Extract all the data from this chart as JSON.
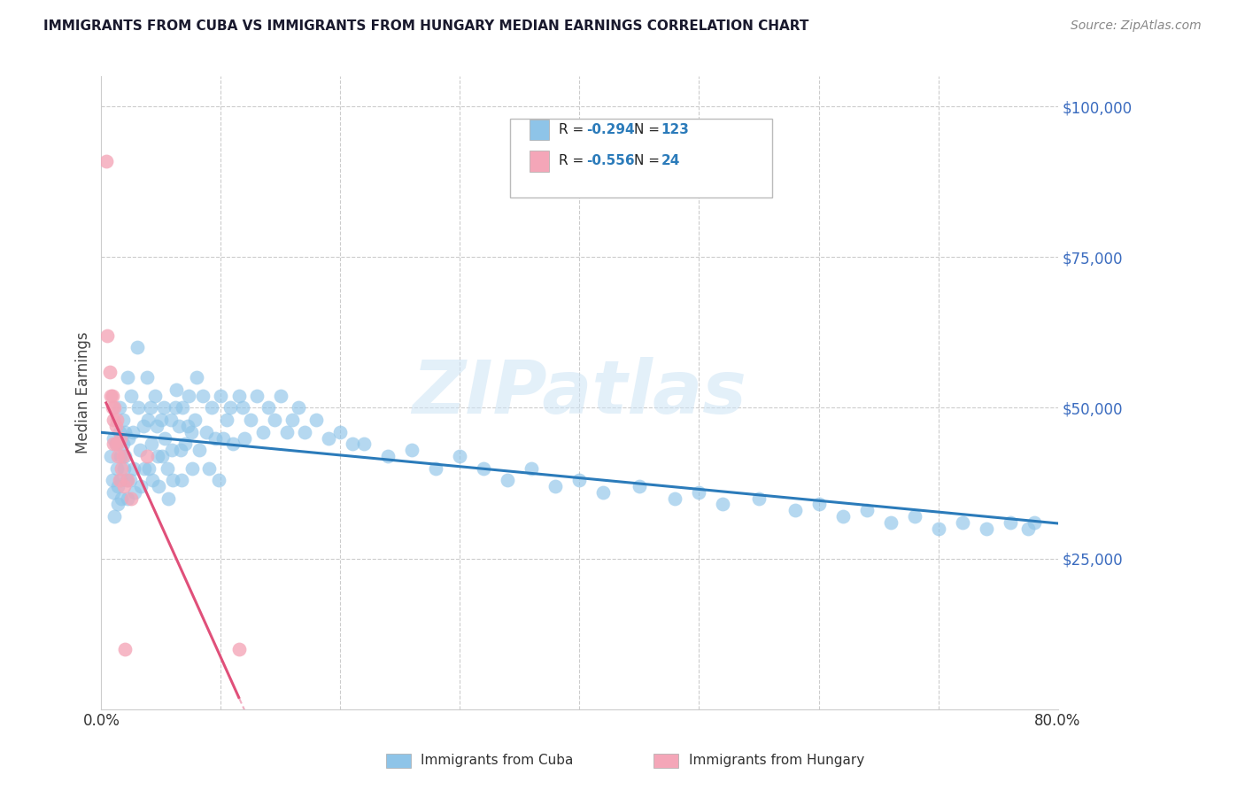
{
  "title": "IMMIGRANTS FROM CUBA VS IMMIGRANTS FROM HUNGARY MEDIAN EARNINGS CORRELATION CHART",
  "source": "Source: ZipAtlas.com",
  "ylabel": "Median Earnings",
  "xlim": [
    0.0,
    0.8
  ],
  "ylim": [
    0,
    105000
  ],
  "yticks": [
    0,
    25000,
    50000,
    75000,
    100000
  ],
  "ytick_labels": [
    "",
    "$25,000",
    "$50,000",
    "$75,000",
    "$100,000"
  ],
  "xticks": [
    0.0,
    0.1,
    0.2,
    0.3,
    0.4,
    0.5,
    0.6,
    0.7,
    0.8
  ],
  "legend_r_cuba": "-0.294",
  "legend_n_cuba": "123",
  "legend_r_hungary": "-0.556",
  "legend_n_hungary": "24",
  "cuba_color": "#8ec4e8",
  "hungary_color": "#f4a6b8",
  "cuba_line_color": "#2b7bba",
  "hungary_line_color": "#e0507a",
  "watermark_text": "ZIPatlas",
  "background_color": "#ffffff",
  "grid_color": "#cccccc",
  "title_color": "#1a1a2e",
  "ytick_color": "#3a6bbf",
  "bottom_legend_cuba": "Immigrants from Cuba",
  "bottom_legend_hungary": "Immigrants from Hungary",
  "cuba_scatter_x": [
    0.008,
    0.009,
    0.01,
    0.01,
    0.011,
    0.012,
    0.013,
    0.014,
    0.014,
    0.015,
    0.015,
    0.016,
    0.016,
    0.017,
    0.018,
    0.018,
    0.019,
    0.02,
    0.02,
    0.021,
    0.022,
    0.022,
    0.023,
    0.024,
    0.025,
    0.026,
    0.027,
    0.028,
    0.03,
    0.031,
    0.032,
    0.033,
    0.035,
    0.036,
    0.038,
    0.039,
    0.04,
    0.041,
    0.042,
    0.043,
    0.045,
    0.046,
    0.047,
    0.048,
    0.05,
    0.051,
    0.052,
    0.053,
    0.055,
    0.056,
    0.058,
    0.059,
    0.06,
    0.062,
    0.063,
    0.065,
    0.066,
    0.067,
    0.068,
    0.07,
    0.072,
    0.073,
    0.075,
    0.076,
    0.078,
    0.08,
    0.082,
    0.085,
    0.088,
    0.09,
    0.092,
    0.095,
    0.098,
    0.1,
    0.102,
    0.105,
    0.108,
    0.11,
    0.115,
    0.118,
    0.12,
    0.125,
    0.13,
    0.135,
    0.14,
    0.145,
    0.15,
    0.155,
    0.16,
    0.165,
    0.17,
    0.18,
    0.19,
    0.2,
    0.21,
    0.22,
    0.24,
    0.26,
    0.28,
    0.3,
    0.32,
    0.34,
    0.36,
    0.38,
    0.4,
    0.42,
    0.45,
    0.48,
    0.5,
    0.52,
    0.55,
    0.58,
    0.6,
    0.62,
    0.64,
    0.66,
    0.68,
    0.7,
    0.72,
    0.74,
    0.76,
    0.775,
    0.78
  ],
  "cuba_scatter_y": [
    42000,
    38000,
    36000,
    45000,
    32000,
    44000,
    40000,
    37000,
    34000,
    50000,
    46000,
    42000,
    38000,
    35000,
    48000,
    44000,
    40000,
    46000,
    42000,
    38000,
    35000,
    55000,
    45000,
    38000,
    52000,
    46000,
    40000,
    36000,
    60000,
    50000,
    43000,
    37000,
    47000,
    40000,
    55000,
    48000,
    40000,
    50000,
    44000,
    38000,
    52000,
    47000,
    42000,
    37000,
    48000,
    42000,
    50000,
    45000,
    40000,
    35000,
    48000,
    43000,
    38000,
    50000,
    53000,
    47000,
    43000,
    38000,
    50000,
    44000,
    47000,
    52000,
    46000,
    40000,
    48000,
    55000,
    43000,
    52000,
    46000,
    40000,
    50000,
    45000,
    38000,
    52000,
    45000,
    48000,
    50000,
    44000,
    52000,
    50000,
    45000,
    48000,
    52000,
    46000,
    50000,
    48000,
    52000,
    46000,
    48000,
    50000,
    46000,
    48000,
    45000,
    46000,
    44000,
    44000,
    42000,
    43000,
    40000,
    42000,
    40000,
    38000,
    40000,
    37000,
    38000,
    36000,
    37000,
    35000,
    36000,
    34000,
    35000,
    33000,
    34000,
    32000,
    33000,
    31000,
    32000,
    30000,
    31000,
    30000,
    31000,
    30000,
    31000
  ],
  "hungary_scatter_x": [
    0.004,
    0.005,
    0.007,
    0.008,
    0.009,
    0.009,
    0.01,
    0.01,
    0.011,
    0.012,
    0.012,
    0.013,
    0.014,
    0.014,
    0.015,
    0.016,
    0.017,
    0.018,
    0.019,
    0.02,
    0.022,
    0.025,
    0.038,
    0.115
  ],
  "hungary_scatter_y": [
    91000,
    62000,
    56000,
    52000,
    52000,
    50000,
    48000,
    44000,
    50000,
    47000,
    44000,
    48000,
    44000,
    42000,
    38000,
    45000,
    40000,
    42000,
    37000,
    10000,
    38000,
    35000,
    42000,
    10000
  ]
}
